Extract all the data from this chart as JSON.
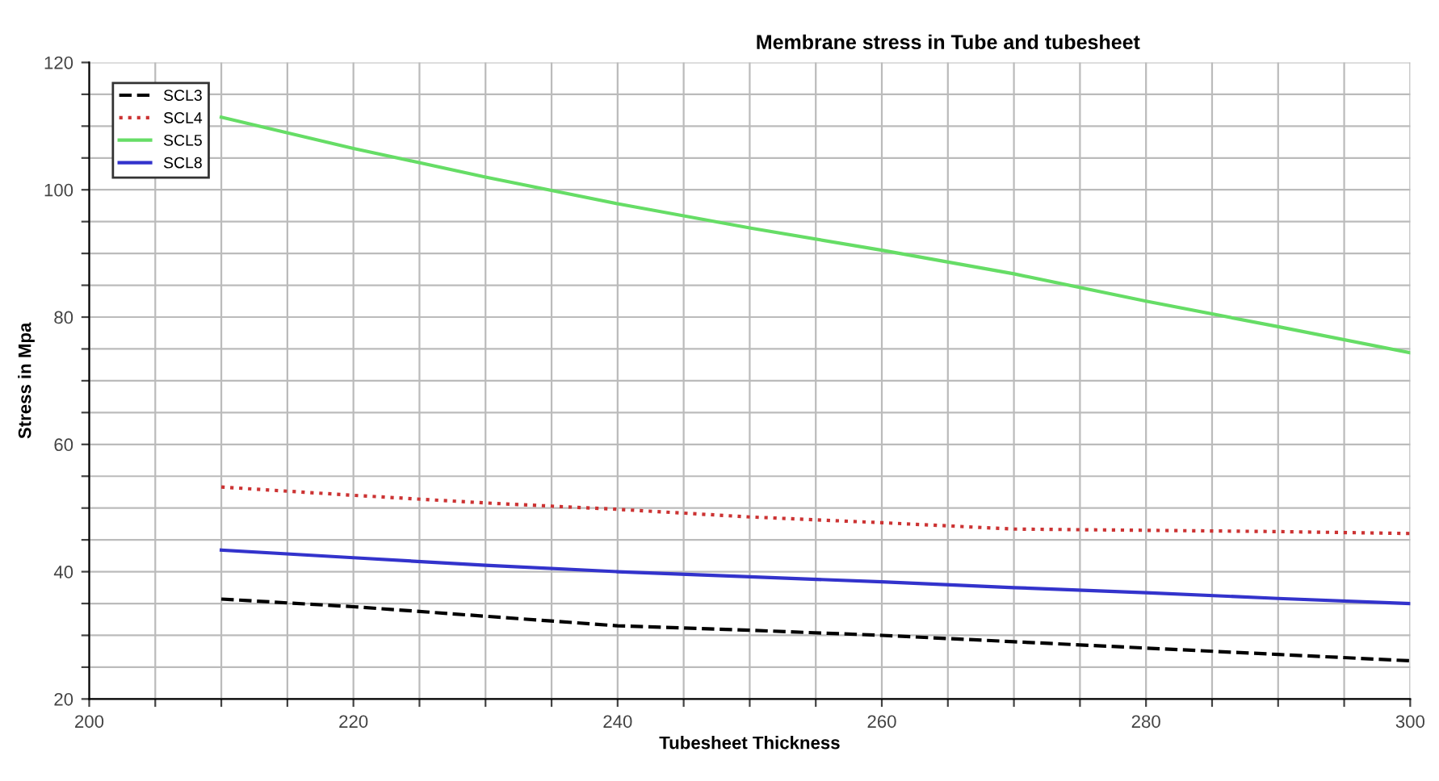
{
  "chart_data": {
    "type": "line",
    "title": "Membrane stress in Tube and tubesheet",
    "xlabel": "Tubesheet Thickness",
    "ylabel": "Stress in Mpa",
    "x": [
      210,
      220,
      230,
      240,
      250,
      260,
      270,
      280,
      290,
      300
    ],
    "series": [
      {
        "name": "SCL3",
        "color": "#000000",
        "line_style": "dashed",
        "values": [
          35.7,
          34.5,
          33,
          31.5,
          30.8,
          30,
          29,
          28,
          27,
          26
        ]
      },
      {
        "name": "SCL4",
        "color": "#cc3333",
        "line_style": "dotted",
        "values": [
          53.3,
          52,
          50.8,
          49.8,
          48.6,
          47.7,
          46.7,
          46.5,
          46.3,
          46
        ]
      },
      {
        "name": "SCL5",
        "color": "#66dd66",
        "line_style": "solid",
        "values": [
          111.4,
          106.5,
          102,
          97.8,
          94,
          90.5,
          86.8,
          82.5,
          78.5,
          74.4
        ]
      },
      {
        "name": "SCL8",
        "color": "#3333cc",
        "line_style": "solid",
        "values": [
          43.4,
          42.2,
          41,
          40,
          39.2,
          38.4,
          37.5,
          36.7,
          35.8,
          35
        ]
      }
    ],
    "xlim": [
      200,
      300
    ],
    "ylim": [
      20,
      120
    ],
    "xticks": [
      200,
      {
        "value": 205,
        "label": null
      },
      {
        "value": 210,
        "label": null
      },
      {
        "value": 215,
        "label": null
      },
      220,
      {
        "value": 225,
        "label": null
      },
      {
        "value": 230,
        "label": null
      },
      {
        "value": 235,
        "label": null
      },
      240,
      {
        "value": 245,
        "label": null
      },
      {
        "value": 250,
        "label": null
      },
      {
        "value": 255,
        "label": null
      },
      260,
      {
        "value": 265,
        "label": null
      },
      {
        "value": 270,
        "label": null
      },
      {
        "value": 275,
        "label": null
      },
      280,
      {
        "value": 285,
        "label": null
      },
      {
        "value": 290,
        "label": null
      },
      {
        "value": 295,
        "label": null
      },
      300
    ],
    "yticks": [
      20,
      {
        "value": 25,
        "label": null
      },
      {
        "value": 30,
        "label": null
      },
      {
        "value": 35,
        "label": null
      },
      40,
      {
        "value": 45,
        "label": null
      },
      {
        "value": 50,
        "label": null
      },
      {
        "value": 55,
        "label": null
      },
      60,
      {
        "value": 65,
        "label": null
      },
      {
        "value": 70,
        "label": null
      },
      {
        "value": 75,
        "label": null
      },
      80,
      {
        "value": 85,
        "label": null
      },
      {
        "value": 90,
        "label": null
      },
      {
        "value": 95,
        "label": null
      },
      100,
      {
        "value": 105,
        "label": null
      },
      {
        "value": 110,
        "label": null
      },
      {
        "value": 115,
        "label": null
      },
      120
    ],
    "grid": true,
    "legend": "top left"
  }
}
